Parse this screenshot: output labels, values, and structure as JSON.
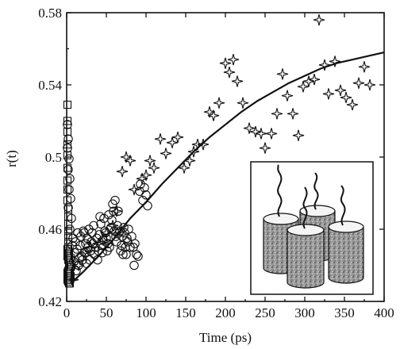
{
  "chart_data": {
    "type": "scatter",
    "xlabel": "Time (ps)",
    "ylabel": "r(t)",
    "xlim": [
      0,
      400
    ],
    "ylim": [
      0.42,
      0.58
    ],
    "xticks": [
      0,
      50,
      100,
      150,
      200,
      250,
      300,
      350,
      400
    ],
    "yticks": [
      0.42,
      0.46,
      0.5,
      0.54,
      0.58
    ],
    "xtick_labels": [
      "0",
      "50",
      "100",
      "150",
      "200",
      "250",
      "300",
      "350",
      "400"
    ],
    "ytick_labels": [
      "0.42",
      "0.46",
      "0.5",
      "0.54",
      "0.58"
    ],
    "grid": false,
    "series": [
      {
        "marker": "square",
        "x": [
          1,
          1,
          1,
          1,
          1,
          1,
          1,
          1,
          1,
          2,
          2,
          2,
          2,
          2,
          2,
          2,
          2,
          2,
          3,
          3,
          3,
          3,
          1,
          2,
          3,
          4,
          1,
          2,
          3,
          4,
          1,
          2,
          4,
          5,
          1,
          3,
          5,
          2,
          4,
          6,
          3,
          5
        ],
        "y": [
          0.529,
          0.52,
          0.514,
          0.507,
          0.501,
          0.494,
          0.487,
          0.482,
          0.476,
          0.471,
          0.467,
          0.463,
          0.459,
          0.456,
          0.453,
          0.45,
          0.448,
          0.446,
          0.444,
          0.442,
          0.44,
          0.438,
          0.436,
          0.435,
          0.434,
          0.433,
          0.432,
          0.431,
          0.43,
          0.43,
          0.445,
          0.443,
          0.441,
          0.439,
          0.449,
          0.447,
          0.444,
          0.437,
          0.436,
          0.44,
          0.432,
          0.434
        ]
      },
      {
        "marker": "circle",
        "x": [
          1,
          2,
          1,
          3,
          2,
          4,
          3,
          5,
          2,
          6,
          4,
          8,
          7,
          10,
          9,
          12,
          11,
          14,
          13,
          16,
          15,
          18,
          17,
          19,
          21,
          20,
          22,
          24,
          23,
          25,
          26,
          28,
          27,
          30,
          31,
          29,
          33,
          32,
          35,
          36,
          34,
          38,
          40,
          39,
          42,
          41,
          44,
          46,
          43,
          45,
          48,
          50,
          47,
          52,
          49,
          51,
          54,
          53,
          56,
          55,
          58,
          57,
          60,
          59,
          62,
          61,
          63,
          64,
          66,
          65,
          68,
          67,
          70,
          69,
          72,
          71,
          74,
          73,
          75,
          76,
          78,
          77,
          80,
          82,
          84,
          86,
          88,
          90,
          92,
          96,
          100,
          102,
          85,
          93,
          98
        ],
        "y": [
          0.518,
          0.51,
          0.505,
          0.499,
          0.493,
          0.488,
          0.482,
          0.477,
          0.472,
          0.466,
          0.46,
          0.455,
          0.451,
          0.447,
          0.442,
          0.437,
          0.453,
          0.458,
          0.449,
          0.444,
          0.44,
          0.456,
          0.451,
          0.445,
          0.459,
          0.443,
          0.458,
          0.452,
          0.447,
          0.441,
          0.455,
          0.46,
          0.45,
          0.448,
          0.453,
          0.443,
          0.452,
          0.458,
          0.446,
          0.45,
          0.462,
          0.455,
          0.448,
          0.443,
          0.467,
          0.457,
          0.451,
          0.454,
          0.463,
          0.447,
          0.459,
          0.455,
          0.466,
          0.452,
          0.458,
          0.448,
          0.45,
          0.468,
          0.461,
          0.456,
          0.474,
          0.465,
          0.459,
          0.47,
          0.456,
          0.476,
          0.453,
          0.462,
          0.458,
          0.47,
          0.448,
          0.459,
          0.456,
          0.451,
          0.461,
          0.446,
          0.45,
          0.458,
          0.446,
          0.455,
          0.46,
          0.453,
          0.45,
          0.456,
          0.45,
          0.452,
          0.446,
          0.445,
          0.481,
          0.476,
          0.479,
          0.473,
          0.44,
          0.485,
          0.483
        ]
      },
      {
        "marker": "star",
        "x": [
          8,
          15,
          22,
          30,
          40,
          46,
          50,
          58,
          63,
          70,
          75,
          80,
          85,
          95,
          100,
          105,
          110,
          118,
          125,
          133,
          140,
          148,
          155,
          160,
          165,
          172,
          180,
          185,
          192,
          200,
          205,
          210,
          215,
          222,
          230,
          238,
          245,
          250,
          258,
          265,
          272,
          278,
          285,
          292,
          298,
          305,
          312,
          318,
          325,
          330,
          338,
          345,
          352,
          360,
          368,
          375,
          382
        ],
        "y": [
          0.432,
          0.44,
          0.447,
          0.45,
          0.452,
          0.454,
          0.458,
          0.462,
          0.47,
          0.492,
          0.5,
          0.498,
          0.482,
          0.488,
          0.49,
          0.498,
          0.494,
          0.51,
          0.502,
          0.508,
          0.511,
          0.494,
          0.498,
          0.503,
          0.507,
          0.507,
          0.525,
          0.523,
          0.53,
          0.552,
          0.547,
          0.554,
          0.542,
          0.53,
          0.516,
          0.514,
          0.513,
          0.505,
          0.513,
          0.524,
          0.546,
          0.534,
          0.524,
          0.512,
          0.539,
          0.542,
          0.543,
          0.576,
          0.551,
          0.535,
          0.553,
          0.537,
          0.533,
          0.529,
          0.541,
          0.55,
          0.54
        ]
      }
    ],
    "fit_curve": {
      "x": [
        5,
        20,
        40,
        60,
        80,
        100,
        120,
        140,
        160,
        180,
        200,
        220,
        240,
        260,
        280,
        300,
        320,
        340,
        360,
        380,
        400
      ],
      "y": [
        0.43,
        0.436,
        0.445,
        0.455,
        0.466,
        0.475,
        0.485,
        0.494,
        0.503,
        0.511,
        0.518,
        0.525,
        0.531,
        0.536,
        0.541,
        0.545,
        0.549,
        0.552,
        0.554,
        0.556,
        0.558
      ]
    }
  }
}
